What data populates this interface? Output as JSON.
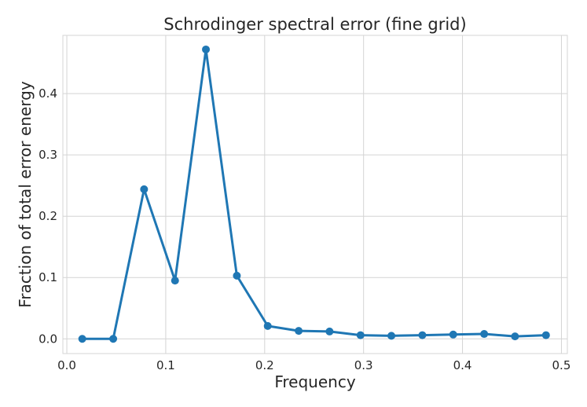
{
  "chart_data": {
    "type": "line",
    "title": "Schrodinger spectral error (fine grid)",
    "xlabel": "Frequency",
    "ylabel": "Fraction of total error energy",
    "xlim": [
      -0.004,
      0.506
    ],
    "ylim": [
      -0.024,
      0.495
    ],
    "xticks": [
      0.0,
      0.1,
      0.2,
      0.3,
      0.4,
      0.5
    ],
    "xtick_labels": [
      "0.0",
      "0.1",
      "0.2",
      "0.3",
      "0.4",
      "0.5"
    ],
    "yticks": [
      0.0,
      0.1,
      0.2,
      0.3,
      0.4
    ],
    "ytick_labels": [
      "0.0",
      "0.1",
      "0.2",
      "0.3",
      "0.4"
    ],
    "grid": true,
    "legend": "none",
    "series": [
      {
        "color": "#1f77b4",
        "x": [
          0.0156,
          0.0469,
          0.0781,
          0.1094,
          0.1406,
          0.1719,
          0.2031,
          0.2344,
          0.2656,
          0.2969,
          0.3281,
          0.3594,
          0.3906,
          0.4219,
          0.4531,
          0.4844
        ],
        "y": [
          0.0,
          0.0,
          0.244,
          0.095,
          0.472,
          0.103,
          0.021,
          0.013,
          0.012,
          0.006,
          0.005,
          0.006,
          0.007,
          0.008,
          0.004,
          0.006
        ]
      }
    ]
  }
}
